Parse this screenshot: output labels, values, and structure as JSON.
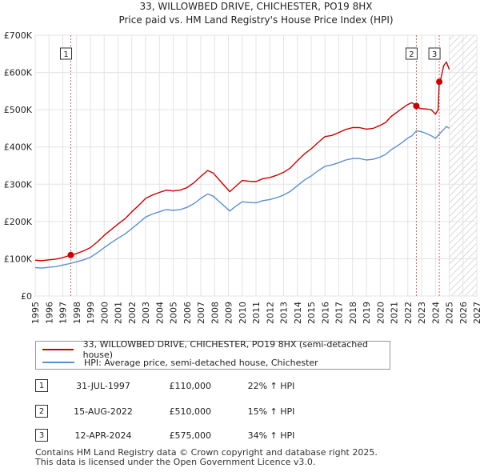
{
  "chart_data": {
    "type": "line",
    "title": "33, WILLOWBED DRIVE, CHICHESTER, PO19 8HX",
    "subtitle": "Price paid vs. HM Land Registry's House Price Index (HPI)",
    "xlim": [
      1995,
      2027
    ],
    "ylim": [
      0,
      700000
    ],
    "y_ticks": [
      {
        "value": 0,
        "label": "£0"
      },
      {
        "value": 100000,
        "label": "£100K"
      },
      {
        "value": 200000,
        "label": "£200K"
      },
      {
        "value": 300000,
        "label": "£300K"
      },
      {
        "value": 400000,
        "label": "£400K"
      },
      {
        "value": 500000,
        "label": "£500K"
      },
      {
        "value": 600000,
        "label": "£600K"
      },
      {
        "value": 700000,
        "label": "£700K"
      }
    ],
    "x_ticks": [
      "1995",
      "1996",
      "1997",
      "1998",
      "1999",
      "2000",
      "2001",
      "2002",
      "2003",
      "2004",
      "2005",
      "2006",
      "2007",
      "2008",
      "2009",
      "2010",
      "2011",
      "2012",
      "2013",
      "2014",
      "2015",
      "2016",
      "2017",
      "2018",
      "2019",
      "2020",
      "2021",
      "2022",
      "2023",
      "2024",
      "2025",
      "2026",
      "2027"
    ],
    "hatch_from": 2025.0,
    "series": [
      {
        "name": "33, WILLOWBED DRIVE, CHICHESTER, PO19 8HX (semi-detached house)",
        "color": "#cc0000",
        "x": [
          1995.0,
          1995.5,
          1996.0,
          1996.5,
          1997.0,
          1997.58,
          1998.0,
          1998.5,
          1999.0,
          1999.5,
          2000.0,
          2000.5,
          2001.0,
          2001.5,
          2002.0,
          2002.5,
          2003.0,
          2003.5,
          2004.0,
          2004.5,
          2005.0,
          2005.5,
          2006.0,
          2006.5,
          2007.0,
          2007.5,
          2007.9,
          2008.5,
          2009.1,
          2009.5,
          2010.0,
          2010.5,
          2011.0,
          2011.5,
          2012.0,
          2012.5,
          2013.0,
          2013.5,
          2014.0,
          2014.5,
          2015.0,
          2015.5,
          2016.0,
          2016.5,
          2017.0,
          2017.5,
          2018.0,
          2018.5,
          2019.0,
          2019.5,
          2020.0,
          2020.4,
          2020.8,
          2021.2,
          2021.6,
          2022.0,
          2022.3,
          2022.62,
          2022.9,
          2023.3,
          2023.7,
          2024.0,
          2024.2,
          2024.28,
          2024.4,
          2024.6,
          2024.8,
          2025.0
        ],
        "values": [
          96000,
          95000,
          97000,
          99000,
          103000,
          110000,
          114000,
          121000,
          130000,
          145000,
          163000,
          178000,
          193000,
          207000,
          226000,
          243000,
          262000,
          271000,
          278000,
          284000,
          282000,
          284000,
          291000,
          304000,
          321000,
          337000,
          330000,
          305000,
          280000,
          293000,
          310000,
          308000,
          307000,
          315000,
          318000,
          324000,
          332000,
          344000,
          363000,
          381000,
          395000,
          412000,
          428000,
          431000,
          439000,
          447000,
          452000,
          452000,
          448000,
          450000,
          458000,
          466000,
          482000,
          493000,
          504000,
          514000,
          519000,
          510000,
          503000,
          502000,
          500000,
          488000,
          500000,
          575000,
          585000,
          618000,
          628000,
          608000
        ]
      },
      {
        "name": "HPI: Average price, semi-detached house, Chichester",
        "color": "#5b8fd0",
        "x": [
          1995.0,
          1995.5,
          1996.0,
          1996.5,
          1997.0,
          1997.5,
          1998.0,
          1998.5,
          1999.0,
          1999.5,
          2000.0,
          2000.5,
          2001.0,
          2001.5,
          2002.0,
          2002.5,
          2003.0,
          2003.5,
          2004.0,
          2004.5,
          2005.0,
          2005.5,
          2006.0,
          2006.5,
          2007.0,
          2007.5,
          2007.9,
          2008.5,
          2009.1,
          2009.5,
          2010.0,
          2010.5,
          2011.0,
          2011.5,
          2012.0,
          2012.5,
          2013.0,
          2013.5,
          2014.0,
          2014.5,
          2015.0,
          2015.5,
          2016.0,
          2016.5,
          2017.0,
          2017.5,
          2018.0,
          2018.5,
          2019.0,
          2019.5,
          2020.0,
          2020.4,
          2020.8,
          2021.2,
          2021.6,
          2022.0,
          2022.3,
          2022.62,
          2022.9,
          2023.3,
          2023.7,
          2024.0,
          2024.3,
          2024.6,
          2024.8,
          2025.0
        ],
        "values": [
          76000,
          75000,
          77000,
          79000,
          83000,
          87000,
          92000,
          97000,
          104000,
          116000,
          130000,
          143000,
          155000,
          166000,
          181000,
          196000,
          212000,
          220000,
          226000,
          232000,
          230000,
          232000,
          238000,
          248000,
          262000,
          274000,
          268000,
          248000,
          228000,
          240000,
          253000,
          251000,
          250000,
          256000,
          259000,
          264000,
          271000,
          281000,
          296000,
          311000,
          322000,
          336000,
          348000,
          352000,
          358000,
          365000,
          369000,
          369000,
          365000,
          367000,
          373000,
          380000,
          393000,
          402000,
          412000,
          424000,
          430000,
          443000,
          442000,
          437000,
          430000,
          423000,
          435000,
          447000,
          455000,
          450000
        ]
      }
    ],
    "sale_markers": [
      {
        "id": "1",
        "x": 1997.58,
        "y": 110000
      },
      {
        "id": "2",
        "x": 2022.62,
        "y": 510000
      },
      {
        "id": "3",
        "x": 2024.28,
        "y": 575000
      }
    ]
  },
  "legend": [
    {
      "label": "33, WILLOWBED DRIVE, CHICHESTER, PO19 8HX (semi-detached house)",
      "color": "#cc0000"
    },
    {
      "label": "HPI: Average price, semi-detached house, Chichester",
      "color": "#5b8fd0"
    }
  ],
  "sales": [
    {
      "id": "1",
      "date": "31-JUL-1997",
      "price": "£110,000",
      "hpi": "22% ↑ HPI"
    },
    {
      "id": "2",
      "date": "15-AUG-2022",
      "price": "£510,000",
      "hpi": "15% ↑ HPI"
    },
    {
      "id": "3",
      "date": "12-APR-2024",
      "price": "£575,000",
      "hpi": "34% ↑ HPI"
    }
  ],
  "footer": {
    "line1": "Contains HM Land Registry data © Crown copyright and database right 2025.",
    "line2": "This data is licensed under the Open Government Licence v3.0."
  }
}
